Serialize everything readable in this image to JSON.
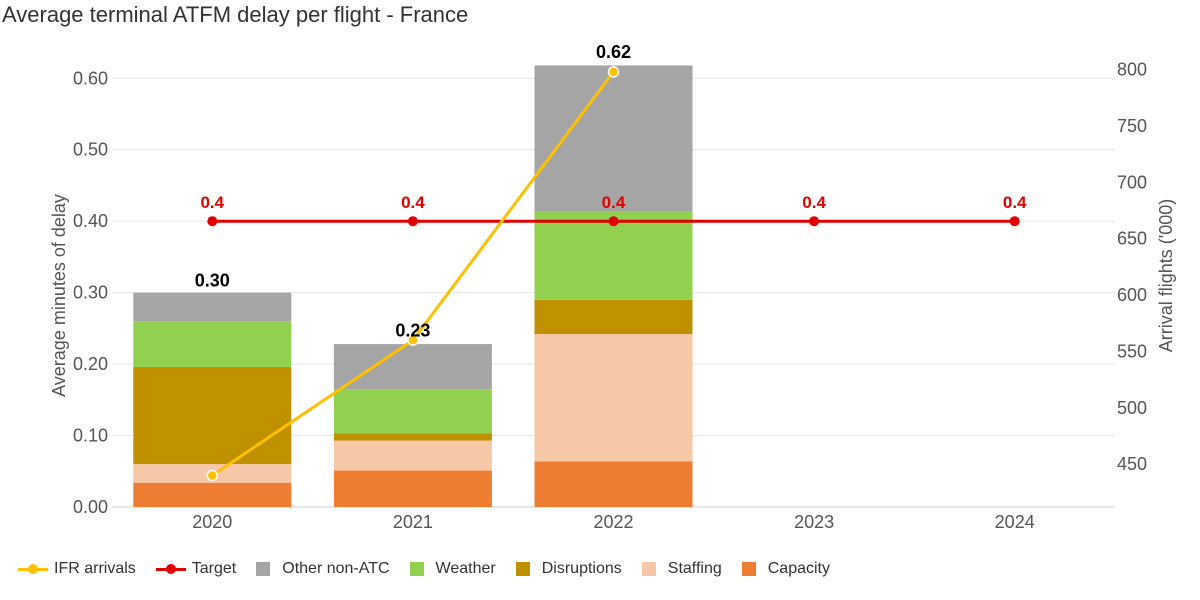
{
  "chart_data": {
    "type": "bar",
    "title": "Average terminal ATFM delay per flight - France",
    "ylabel": "Average minutes of delay",
    "y2label": "Arrival flights ('000)",
    "categories": [
      "2020",
      "2021",
      "2022",
      "2023",
      "2024"
    ],
    "ylim": [
      0,
      0.62
    ],
    "y2lim": [
      412,
      805
    ],
    "yticks": [
      "0.00",
      "0.10",
      "0.20",
      "0.30",
      "0.40",
      "0.50",
      "0.60"
    ],
    "y2ticks": [
      "450",
      "500",
      "550",
      "600",
      "650",
      "700",
      "750",
      "800"
    ],
    "grid": true,
    "legend_position": "bottom-left",
    "stacked_series": [
      {
        "name": "Capacity",
        "color": "#ED7D31",
        "values": [
          0.034,
          0.051,
          0.064,
          null,
          null
        ]
      },
      {
        "name": "Staffing",
        "color": "#F6C8A8",
        "values": [
          0.026,
          0.042,
          0.178,
          null,
          null
        ]
      },
      {
        "name": "Disruptions",
        "color": "#BF9000",
        "values": [
          0.136,
          0.01,
          0.048,
          null,
          null
        ]
      },
      {
        "name": "Weather",
        "color": "#92D050",
        "values": [
          0.064,
          0.062,
          0.123,
          null,
          null
        ]
      },
      {
        "name": "Other non-ATC",
        "color": "#A5A5A5",
        "values": [
          0.04,
          0.063,
          0.205,
          null,
          null
        ]
      }
    ],
    "totals": [
      0.3,
      0.23,
      0.62,
      null,
      null
    ],
    "total_labels": [
      "0.30",
      "0.23",
      "0.62",
      "",
      ""
    ],
    "line_series": [
      {
        "name": "IFR arrivals",
        "color": "#FFC000",
        "axis": "right",
        "values": [
          440,
          560,
          798,
          null,
          null
        ]
      },
      {
        "name": "Target",
        "color": "#E00000",
        "axis": "left",
        "values": [
          0.4,
          0.4,
          0.4,
          0.4,
          0.4
        ],
        "labels": [
          "0.4",
          "0.4",
          "0.4",
          "0.4",
          "0.4"
        ]
      }
    ]
  },
  "legend": [
    {
      "label": "IFR arrivals",
      "kind": "line",
      "color": "#FFC000"
    },
    {
      "label": "Target",
      "kind": "line",
      "color": "#E00000"
    },
    {
      "label": "Other non-ATC",
      "kind": "square",
      "color": "#A5A5A5"
    },
    {
      "label": "Weather",
      "kind": "square",
      "color": "#92D050"
    },
    {
      "label": "Disruptions",
      "kind": "square",
      "color": "#BF9000"
    },
    {
      "label": "Staffing",
      "kind": "square",
      "color": "#F6C8A8"
    },
    {
      "label": "Capacity",
      "kind": "square",
      "color": "#ED7D31"
    }
  ]
}
